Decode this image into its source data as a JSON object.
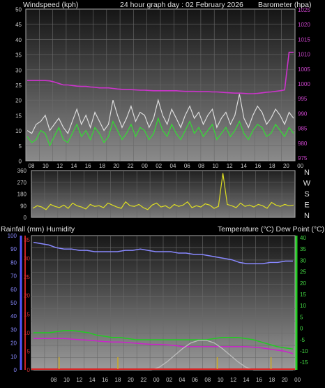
{
  "header": {
    "left_label": "Windspeed (kph)",
    "center_label": "24 hour graph day : 02 February 2026",
    "right_label": "Barometer (hpa)"
  },
  "direction_letters": [
    "N",
    "W",
    "S",
    "E",
    "N"
  ],
  "bottom_header": {
    "left_label": "Rainfall (mm)  Humidity",
    "right_label": "Temperature (°C) Dew Point (°C)"
  },
  "colors": {
    "wind_avg": "#33dd33",
    "wind_gust": "#dddddd",
    "barometer": "#cc33cc",
    "direction": "#dddd22",
    "humidity": "#8888ff",
    "temperature": "#22cc22",
    "dew_point": "#cc22cc",
    "solar": "#bbbbbb",
    "rain": "#dd2222",
    "rain_marks": "#ccaa22"
  },
  "chart_data": [
    {
      "type": "line",
      "title": "24 hour graph day : 02 February 2026",
      "x_ticks": [
        "08",
        "10",
        "12",
        "14",
        "16",
        "18",
        "20",
        "22",
        "00",
        "02",
        "04",
        "06",
        "08",
        "10",
        "12",
        "14",
        "16",
        "18",
        "20",
        "00"
      ],
      "ylabel_left": "Windspeed (kph)",
      "ylabel_right": "Barometer (hpa)",
      "ylim_left": [
        0,
        50
      ],
      "ylim_right": [
        973,
        1025
      ],
      "yticks_left": [
        "50",
        "45",
        "40",
        "35",
        "30",
        "25",
        "20",
        "15",
        "10",
        "5",
        "0"
      ],
      "yticks_right": [
        "1025",
        "1020",
        "1015",
        "1010",
        "1005",
        "1000",
        "995",
        "990",
        "985",
        "980",
        "975"
      ],
      "grid": true,
      "series": [
        {
          "name": "Windspeed (kph)",
          "axis": "left",
          "values": [
            8,
            6,
            7,
            10,
            9,
            5,
            8,
            11,
            7,
            6,
            9,
            12,
            8,
            10,
            7,
            11,
            9,
            6,
            8,
            13,
            10,
            7,
            9,
            12,
            8,
            11,
            10,
            7,
            9,
            14,
            10,
            8,
            12,
            9,
            7,
            10,
            13,
            9,
            11,
            8,
            10,
            12,
            7,
            9,
            11,
            8,
            10,
            13,
            9,
            7,
            10,
            12,
            11,
            8,
            9,
            12,
            10,
            8,
            11,
            9
          ]
        },
        {
          "name": "Wind gust",
          "axis": "left",
          "values": [
            10,
            9,
            12,
            13,
            15,
            10,
            12,
            14,
            11,
            9,
            13,
            17,
            12,
            15,
            11,
            16,
            13,
            10,
            12,
            20,
            15,
            11,
            14,
            18,
            13,
            16,
            15,
            11,
            14,
            20,
            15,
            12,
            17,
            14,
            11,
            15,
            18,
            14,
            16,
            12,
            15,
            17,
            11,
            14,
            16,
            12,
            15,
            22,
            14,
            11,
            15,
            18,
            16,
            12,
            14,
            17,
            15,
            12,
            16,
            14
          ]
        },
        {
          "name": "Barometer (hpa)",
          "axis": "right",
          "values": [
            1000.5,
            1000.5,
            1000.5,
            1000.5,
            1000.5,
            1000.4,
            1000,
            999.5,
            999,
            999,
            998.8,
            998.6,
            998.5,
            998.5,
            998.3,
            998.2,
            998,
            998,
            998,
            997.8,
            997.6,
            997.5,
            997.4,
            997.4,
            997.3,
            997.2,
            997.2,
            997.1,
            997,
            997,
            997,
            997,
            997,
            997,
            996.9,
            996.8,
            996.8,
            996.8,
            996.7,
            996.7,
            996.7,
            996.6,
            996.6,
            996.5,
            996.4,
            996.3,
            996.2,
            996.2,
            996.1,
            996,
            996,
            996.1,
            996.3,
            996.5,
            996.6,
            996.8,
            997,
            997.3,
            1010.2,
            1010.2
          ]
        }
      ]
    },
    {
      "type": "line",
      "ylabel_left": "",
      "ylim": [
        0,
        360
      ],
      "yticks": [
        "360",
        "270",
        "180",
        "90",
        "0"
      ],
      "grid": true,
      "series": [
        {
          "name": "Wind direction",
          "values": [
            70,
            90,
            80,
            60,
            100,
            85,
            75,
            95,
            70,
            110,
            90,
            80,
            65,
            100,
            85,
            90,
            75,
            110,
            95,
            80,
            70,
            120,
            90,
            85,
            100,
            75,
            60,
            95,
            110,
            80,
            90,
            70,
            100,
            85,
            95,
            120,
            75,
            90,
            80,
            105,
            95,
            70,
            85,
            340,
            100,
            90,
            75,
            110,
            85,
            95,
            80,
            100,
            90,
            70,
            115,
            95,
            85,
            100,
            90,
            95
          ]
        }
      ]
    },
    {
      "type": "line",
      "ylabel_left": "Rainfall (mm)  Humidity",
      "ylabel_right": "Temperature (°C) Dew Point (°C)",
      "ylim_humidity": [
        0,
        100
      ],
      "ylim_rain": [
        0,
        35
      ],
      "ylim_temp": [
        -18,
        40
      ],
      "yticks_humidity": [
        "100",
        "90",
        "80",
        "70",
        "60",
        "50",
        "40",
        "30",
        "20",
        "10",
        "0"
      ],
      "yticks_rain": [
        "35",
        "30",
        "25",
        "20",
        "15",
        "10",
        "5",
        "0"
      ],
      "yticks_temp": [
        "40",
        "35",
        "30",
        "25",
        "20",
        "15",
        "10",
        "5",
        "0",
        "-5",
        "-10",
        "-15"
      ],
      "grid": true,
      "series": [
        {
          "name": "Humidity",
          "axis": "humidity",
          "values": [
            95,
            94,
            93,
            91,
            90,
            90,
            89,
            89,
            88,
            88,
            88,
            88,
            89,
            89,
            90,
            89,
            88,
            88,
            88,
            87,
            87,
            86,
            86,
            85,
            84,
            83,
            82,
            80,
            79,
            79,
            79,
            80,
            80,
            81,
            81
          ]
        },
        {
          "name": "Temperature (°C)",
          "axis": "temp",
          "values": [
            -2,
            -2,
            -2,
            -1.5,
            -1,
            -1,
            -1.5,
            -2,
            -3,
            -3.5,
            -4,
            -4,
            -4.5,
            -5,
            -5,
            -5,
            -5,
            -5,
            -5,
            -5,
            -5,
            -5,
            -5,
            -4.5,
            -4,
            -4,
            -4,
            -4.5,
            -5,
            -6,
            -7,
            -8,
            -8.5,
            -9
          ]
        },
        {
          "name": "Dew Point (°C)",
          "axis": "temp",
          "values": [
            -4.5,
            -4.5,
            -4.5,
            -4.5,
            -4.5,
            -4.8,
            -5,
            -5.2,
            -5.5,
            -5.8,
            -6,
            -6,
            -6.2,
            -6.5,
            -6.8,
            -7,
            -7,
            -7.2,
            -7.5,
            -8,
            -8,
            -8,
            -8,
            -8,
            -8,
            -8,
            -8,
            -8,
            -8.2,
            -8.5,
            -9,
            -9.5,
            -10,
            -11
          ]
        },
        {
          "name": "Solar",
          "axis": "humidity",
          "values": [
            0,
            0,
            0,
            0,
            0,
            0,
            0,
            0,
            0,
            0,
            0,
            0,
            0,
            0,
            0,
            0,
            2,
            6,
            11,
            16,
            20,
            22,
            22,
            20,
            16,
            11,
            6,
            2,
            0,
            0,
            0,
            0,
            0,
            0
          ]
        }
      ],
      "rain_marks_x": [
        0.105,
        0.328,
        0.705,
        0.909
      ],
      "rain_total": 0
    }
  ]
}
